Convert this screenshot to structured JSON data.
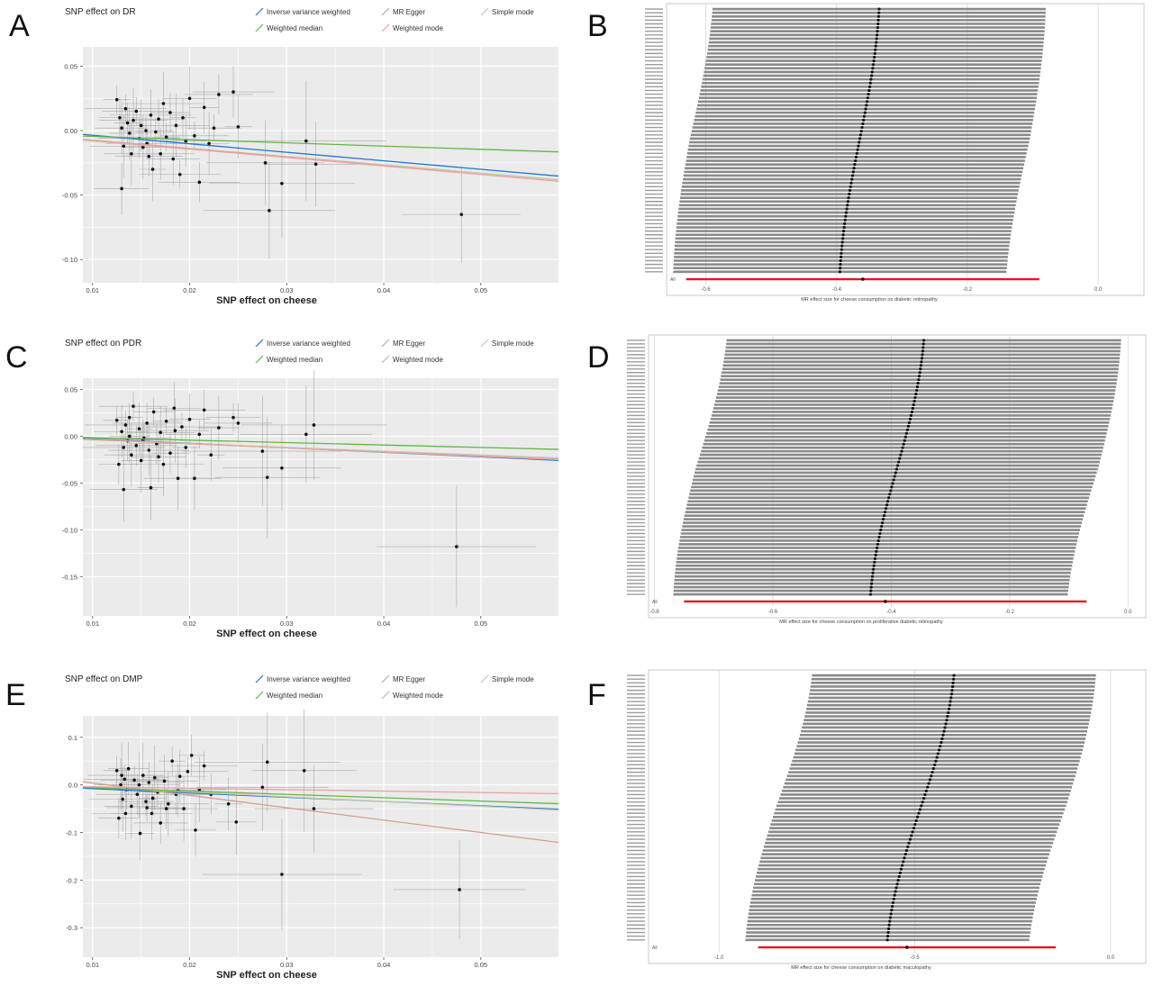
{
  "panel_letters": [
    "A",
    "B",
    "C",
    "D",
    "E",
    "F"
  ],
  "colors": {
    "plot_bg": "#ebebeb",
    "grid": "#ffffff",
    "point": "#111111",
    "errorbar": "#9a9a9a",
    "ivw": "#1f77d4",
    "mr_egger": "#d2a08a",
    "simple_mode": "#c9c9a8",
    "weighted_median": "#5fb848",
    "weighted_mode": "#e8a2a2",
    "loo_bar": "#8a8a8a",
    "loo_overall": "#e8161c"
  },
  "chart_data": [
    {
      "type": "scatter",
      "title": "SNP effect on DR",
      "xlabel": "SNP effect on cheese",
      "ylabel": "",
      "xlim": [
        0.009,
        0.058
      ],
      "ylim": [
        -0.118,
        0.065
      ],
      "xticks": [
        0.01,
        0.02,
        0.03,
        0.04,
        0.05
      ],
      "yticks": [
        -0.1,
        -0.05,
        0.0,
        0.05
      ],
      "xtick_labels": [
        "0.01",
        "0.02",
        "0.03",
        "0.04",
        "0.05"
      ],
      "ytick_labels": [
        "-0.10",
        "-0.05",
        "0.00",
        "0.05"
      ],
      "legend": [
        {
          "name": "Inverse variance weighted",
          "key": "ivw"
        },
        {
          "name": "MR Egger",
          "key": "mr_egger"
        },
        {
          "name": "Simple mode",
          "key": "simple_mode"
        },
        {
          "name": "Weighted median",
          "key": "weighted_median"
        },
        {
          "name": "Weighted mode",
          "key": "weighted_mode"
        }
      ],
      "lines": [
        {
          "key": "ivw",
          "slope": -0.66,
          "intercept": 0.003
        },
        {
          "key": "mr_egger",
          "slope": -0.64,
          "intercept": -0.001
        },
        {
          "key": "simple_mode",
          "slope": -0.62,
          "intercept": -0.002
        },
        {
          "key": "weighted_median",
          "slope": -0.25,
          "intercept": -0.002
        },
        {
          "key": "weighted_mode",
          "slope": -0.66,
          "intercept": -0.001
        }
      ],
      "points": [
        {
          "x": 0.0125,
          "y": 0.024
        },
        {
          "x": 0.0128,
          "y": 0.01
        },
        {
          "x": 0.013,
          "y": 0.002
        },
        {
          "x": 0.0132,
          "y": -0.012
        },
        {
          "x": 0.0134,
          "y": 0.017
        },
        {
          "x": 0.0136,
          "y": 0.006
        },
        {
          "x": 0.0138,
          "y": -0.002
        },
        {
          "x": 0.014,
          "y": -0.018
        },
        {
          "x": 0.0145,
          "y": 0.015
        },
        {
          "x": 0.0148,
          "y": -0.006
        },
        {
          "x": 0.015,
          "y": 0.004
        },
        {
          "x": 0.0152,
          "y": -0.013
        },
        {
          "x": 0.0155,
          "y": 0.0
        },
        {
          "x": 0.0158,
          "y": -0.02
        },
        {
          "x": 0.016,
          "y": 0.012
        },
        {
          "x": 0.0162,
          "y": -0.03
        },
        {
          "x": 0.0165,
          "y": -0.001
        },
        {
          "x": 0.0168,
          "y": 0.009
        },
        {
          "x": 0.017,
          "y": -0.018
        },
        {
          "x": 0.0173,
          "y": 0.021
        },
        {
          "x": 0.0176,
          "y": -0.005
        },
        {
          "x": 0.018,
          "y": 0.014
        },
        {
          "x": 0.0183,
          "y": -0.022
        },
        {
          "x": 0.0186,
          "y": 0.004
        },
        {
          "x": 0.019,
          "y": -0.034
        },
        {
          "x": 0.0193,
          "y": 0.01
        },
        {
          "x": 0.0196,
          "y": -0.008
        },
        {
          "x": 0.02,
          "y": 0.025
        },
        {
          "x": 0.0205,
          "y": -0.004
        },
        {
          "x": 0.021,
          "y": -0.04
        },
        {
          "x": 0.0215,
          "y": 0.018
        },
        {
          "x": 0.022,
          "y": -0.01
        },
        {
          "x": 0.0225,
          "y": 0.002
        },
        {
          "x": 0.023,
          "y": 0.028
        },
        {
          "x": 0.0245,
          "y": 0.03
        },
        {
          "x": 0.025,
          "y": 0.003
        },
        {
          "x": 0.0278,
          "y": -0.025
        },
        {
          "x": 0.0282,
          "y": -0.062
        },
        {
          "x": 0.0295,
          "y": -0.041
        },
        {
          "x": 0.032,
          "y": -0.008
        },
        {
          "x": 0.033,
          "y": -0.026
        },
        {
          "x": 0.048,
          "y": -0.065
        },
        {
          "x": 0.013,
          "y": -0.045
        },
        {
          "x": 0.0142,
          "y": 0.008
        },
        {
          "x": 0.0156,
          "y": -0.01
        }
      ]
    },
    {
      "type": "forest",
      "xlabel": "MR effect size for cheese consumption on diabetic retinopathy",
      "xlim": [
        -0.66,
        0.07
      ],
      "xticks": [
        -0.6,
        -0.4,
        -0.2,
        0.0
      ],
      "xtick_labels": [
        "-0.6",
        "-0.4",
        "-0.2",
        "0.0"
      ],
      "n_snps": 72,
      "estimate_start": -0.335,
      "estimate_end": -0.395,
      "half_width": 0.26,
      "overall": {
        "label": "All",
        "estimate": -0.36,
        "lower": -0.63,
        "upper": -0.09
      }
    },
    {
      "type": "scatter",
      "title": "SNP effect on PDR",
      "xlabel": "SNP effect on cheese",
      "ylabel": "",
      "xlim": [
        0.009,
        0.058
      ],
      "ylim": [
        -0.192,
        0.062
      ],
      "xticks": [
        0.01,
        0.02,
        0.03,
        0.04,
        0.05
      ],
      "yticks": [
        -0.15,
        -0.1,
        -0.05,
        0.0,
        0.05
      ],
      "xtick_labels": [
        "0.01",
        "0.02",
        "0.03",
        "0.04",
        "0.05"
      ],
      "ytick_labels": [
        "-0.15",
        "-0.10",
        "-0.05",
        "0.00",
        "0.05"
      ],
      "legend": [
        {
          "name": "Inverse variance weighted",
          "key": "ivw"
        },
        {
          "name": "MR Egger",
          "key": "mr_egger"
        },
        {
          "name": "Simple mode",
          "key": "simple_mode"
        },
        {
          "name": "Weighted median",
          "key": "weighted_median"
        },
        {
          "name": "Weighted mode",
          "key": "weighted_mode"
        }
      ],
      "lines": [
        {
          "key": "ivw",
          "slope": -0.48,
          "intercept": 0.002
        },
        {
          "key": "mr_egger",
          "slope": -0.44,
          "intercept": 0.001
        },
        {
          "key": "simple_mode",
          "slope": -0.4,
          "intercept": 0.0
        },
        {
          "key": "weighted_median",
          "slope": -0.26,
          "intercept": 0.001
        },
        {
          "key": "weighted_mode",
          "slope": -0.45,
          "intercept": 0.001
        }
      ],
      "points": [
        {
          "x": 0.0125,
          "y": 0.017
        },
        {
          "x": 0.0127,
          "y": -0.03
        },
        {
          "x": 0.013,
          "y": 0.005
        },
        {
          "x": 0.0132,
          "y": -0.057
        },
        {
          "x": 0.0134,
          "y": 0.012
        },
        {
          "x": 0.0136,
          "y": -0.005
        },
        {
          "x": 0.0138,
          "y": 0.0
        },
        {
          "x": 0.014,
          "y": -0.02
        },
        {
          "x": 0.0142,
          "y": 0.032
        },
        {
          "x": 0.0145,
          "y": -0.01
        },
        {
          "x": 0.0148,
          "y": 0.008
        },
        {
          "x": 0.015,
          "y": -0.026
        },
        {
          "x": 0.0153,
          "y": -0.002
        },
        {
          "x": 0.0156,
          "y": 0.014
        },
        {
          "x": 0.0158,
          "y": -0.015
        },
        {
          "x": 0.016,
          "y": -0.055
        },
        {
          "x": 0.0163,
          "y": 0.026
        },
        {
          "x": 0.0166,
          "y": -0.008
        },
        {
          "x": 0.017,
          "y": 0.004
        },
        {
          "x": 0.0173,
          "y": -0.03
        },
        {
          "x": 0.0176,
          "y": 0.016
        },
        {
          "x": 0.018,
          "y": -0.018
        },
        {
          "x": 0.0184,
          "y": 0.03
        },
        {
          "x": 0.0188,
          "y": -0.045
        },
        {
          "x": 0.0192,
          "y": 0.01
        },
        {
          "x": 0.0196,
          "y": -0.012
        },
        {
          "x": 0.02,
          "y": 0.018
        },
        {
          "x": 0.0205,
          "y": -0.045
        },
        {
          "x": 0.021,
          "y": 0.002
        },
        {
          "x": 0.0215,
          "y": 0.028
        },
        {
          "x": 0.0222,
          "y": -0.02
        },
        {
          "x": 0.023,
          "y": 0.009
        },
        {
          "x": 0.0245,
          "y": 0.02
        },
        {
          "x": 0.025,
          "y": 0.014
        },
        {
          "x": 0.0275,
          "y": -0.016
        },
        {
          "x": 0.028,
          "y": -0.044
        },
        {
          "x": 0.0295,
          "y": -0.034
        },
        {
          "x": 0.032,
          "y": 0.002
        },
        {
          "x": 0.0328,
          "y": 0.012
        },
        {
          "x": 0.0475,
          "y": -0.118
        },
        {
          "x": 0.0138,
          "y": 0.02
        },
        {
          "x": 0.0152,
          "y": -0.004
        },
        {
          "x": 0.0168,
          "y": -0.022
        },
        {
          "x": 0.0185,
          "y": 0.006
        },
        {
          "x": 0.0132,
          "y": -0.012
        }
      ]
    },
    {
      "type": "forest",
      "xlabel": "MR effect size for cheese consumption on proliferative diabetic retinopathy",
      "xlim": [
        -0.81,
        0.03
      ],
      "xticks": [
        -0.8,
        -0.6,
        -0.4,
        -0.2,
        0.0
      ],
      "xtick_labels": [
        "-0.8",
        "-0.6",
        "-0.4",
        "-0.2",
        "0.0"
      ],
      "n_snps": 72,
      "estimate_start": -0.345,
      "estimate_end": -0.435,
      "half_width": 0.34,
      "overall": {
        "label": "All",
        "estimate": -0.41,
        "lower": -0.75,
        "upper": -0.07
      }
    },
    {
      "type": "scatter",
      "title": "SNP effect on DMP",
      "xlabel": "SNP effect on cheese",
      "ylabel": "",
      "xlim": [
        0.009,
        0.058
      ],
      "ylim": [
        -0.362,
        0.145
      ],
      "xticks": [
        0.01,
        0.02,
        0.03,
        0.04,
        0.05
      ],
      "yticks": [
        -0.3,
        -0.2,
        -0.1,
        0.0,
        0.1
      ],
      "xtick_labels": [
        "0.01",
        "0.02",
        "0.03",
        "0.04",
        "0.05"
      ],
      "ytick_labels": [
        "-0.3",
        "-0.2",
        "-0.1",
        "0.0",
        "0.1"
      ],
      "legend": [
        {
          "name": "Inverse variance weighted",
          "key": "ivw"
        },
        {
          "name": "MR Egger",
          "key": "mr_egger"
        },
        {
          "name": "Simple mode",
          "key": "simple_mode"
        },
        {
          "name": "Weighted median",
          "key": "weighted_median"
        },
        {
          "name": "Weighted mode",
          "key": "weighted_mode"
        }
      ],
      "lines": [
        {
          "key": "ivw",
          "slope": -0.9,
          "intercept": 0.001
        },
        {
          "key": "mr_egger",
          "slope": -2.6,
          "intercept": 0.03
        },
        {
          "key": "simple_mode",
          "slope": -1.0,
          "intercept": 0.005
        },
        {
          "key": "weighted_median",
          "slope": -0.7,
          "intercept": 0.001
        },
        {
          "key": "weighted_mode",
          "slope": -0.3,
          "intercept": -0.001
        }
      ],
      "points": [
        {
          "x": 0.0125,
          "y": 0.03
        },
        {
          "x": 0.0127,
          "y": -0.07
        },
        {
          "x": 0.0129,
          "y": 0.0
        },
        {
          "x": 0.0131,
          "y": -0.03
        },
        {
          "x": 0.0133,
          "y": 0.012
        },
        {
          "x": 0.0135,
          "y": -0.01
        },
        {
          "x": 0.0137,
          "y": 0.034
        },
        {
          "x": 0.014,
          "y": -0.045
        },
        {
          "x": 0.0143,
          "y": 0.01
        },
        {
          "x": 0.0146,
          "y": -0.02
        },
        {
          "x": 0.0149,
          "y": -0.102
        },
        {
          "x": 0.0152,
          "y": 0.02
        },
        {
          "x": 0.0155,
          "y": -0.035
        },
        {
          "x": 0.0158,
          "y": 0.005
        },
        {
          "x": 0.0161,
          "y": -0.06
        },
        {
          "x": 0.0164,
          "y": 0.015
        },
        {
          "x": 0.0167,
          "y": -0.015
        },
        {
          "x": 0.017,
          "y": -0.08
        },
        {
          "x": 0.0174,
          "y": 0.008
        },
        {
          "x": 0.0178,
          "y": -0.04
        },
        {
          "x": 0.0182,
          "y": 0.05
        },
        {
          "x": 0.0186,
          "y": -0.02
        },
        {
          "x": 0.019,
          "y": 0.018
        },
        {
          "x": 0.0194,
          "y": -0.05
        },
        {
          "x": 0.0198,
          "y": 0.028
        },
        {
          "x": 0.0202,
          "y": 0.062
        },
        {
          "x": 0.0206,
          "y": -0.095
        },
        {
          "x": 0.021,
          "y": -0.01
        },
        {
          "x": 0.0215,
          "y": 0.04
        },
        {
          "x": 0.0222,
          "y": -0.02
        },
        {
          "x": 0.024,
          "y": -0.04
        },
        {
          "x": 0.0248,
          "y": -0.078
        },
        {
          "x": 0.0275,
          "y": -0.005
        },
        {
          "x": 0.028,
          "y": 0.048
        },
        {
          "x": 0.0295,
          "y": -0.188
        },
        {
          "x": 0.0318,
          "y": 0.03
        },
        {
          "x": 0.0328,
          "y": -0.05
        },
        {
          "x": 0.0478,
          "y": -0.22
        },
        {
          "x": 0.0134,
          "y": -0.06
        },
        {
          "x": 0.0148,
          "y": 0.0
        },
        {
          "x": 0.0162,
          "y": -0.028
        },
        {
          "x": 0.0176,
          "y": -0.05
        },
        {
          "x": 0.0188,
          "y": -0.012
        },
        {
          "x": 0.013,
          "y": 0.02
        },
        {
          "x": 0.0156,
          "y": -0.048
        }
      ]
    },
    {
      "type": "forest",
      "xlabel": "MR effect size for cheese consumption on diabetic maculopathy",
      "xlim": [
        -1.18,
        0.09
      ],
      "xticks": [
        -1.0,
        -0.5,
        0.0
      ],
      "xtick_labels": [
        "-1.0",
        "-0.5",
        "0.0"
      ],
      "n_snps": 72,
      "estimate_start": -0.4,
      "estimate_end": -0.57,
      "half_width": 0.37,
      "overall": {
        "label": "All",
        "estimate": -0.52,
        "lower": -0.9,
        "upper": -0.14
      }
    }
  ]
}
